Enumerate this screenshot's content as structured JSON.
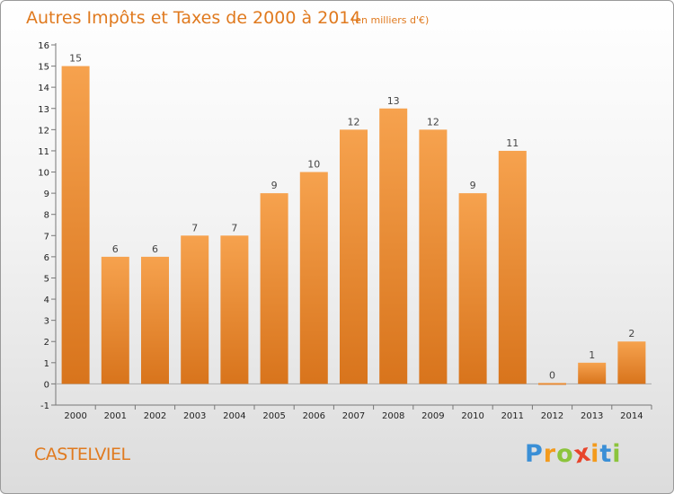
{
  "chart_data": {
    "type": "bar",
    "title": "Autres Impôts et Taxes de 2000 à 2014",
    "subtitle": "(en milliers d'€)",
    "categories": [
      "2000",
      "2001",
      "2002",
      "2003",
      "2004",
      "2005",
      "2006",
      "2007",
      "2008",
      "2009",
      "2010",
      "2011",
      "2012",
      "2013",
      "2014"
    ],
    "values": [
      15,
      6,
      6,
      7,
      7,
      9,
      10,
      12,
      13,
      12,
      9,
      11,
      0,
      1,
      2
    ],
    "ylim": [
      -1,
      16
    ],
    "yticks": [
      -1,
      0,
      1,
      2,
      3,
      4,
      5,
      6,
      7,
      8,
      9,
      10,
      11,
      12,
      13,
      14,
      15,
      16
    ],
    "grid": false,
    "colors": {
      "bar_top": "#f6a24e",
      "bar_bottom": "#d8741c",
      "accent": "#e07a1f"
    }
  },
  "commune": "CASTELVIEL",
  "logo": {
    "letters": [
      "P",
      "r",
      "o",
      "x",
      "i",
      "t",
      "i"
    ],
    "colors": [
      "#3a8fd6",
      "#f39a1c",
      "#8cc43c",
      "#e8452c",
      "#f39a1c",
      "#3a8fd6",
      "#8cc43c"
    ]
  }
}
